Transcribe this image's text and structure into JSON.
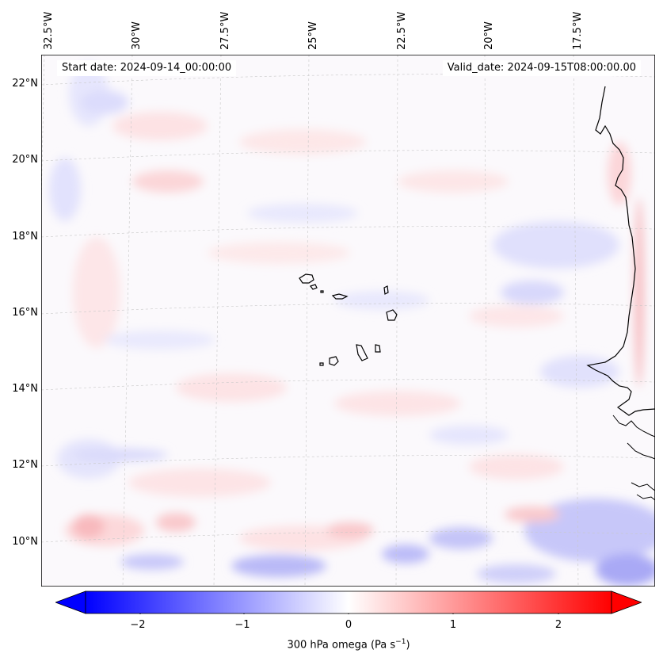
{
  "map": {
    "start_date": "Start date: 2024-09-14_00:00:00",
    "valid_date": "Valid_date: 2024-09-15T08:00:00.00",
    "lon_labels": [
      "32.5°W",
      "30°W",
      "27.5°W",
      "25°W",
      "22.5°W",
      "20°W",
      "17.5°W"
    ],
    "lat_labels": [
      "22°N",
      "20°N",
      "18°N",
      "16°N",
      "14°N",
      "12°N",
      "10°N"
    ],
    "field": "300 hPa omega",
    "colors": {
      "negative": "#0000ff",
      "zero": "#ffffff",
      "positive": "#ff0000",
      "coast": "#000000",
      "grid": "#b0b0b0"
    }
  },
  "colorbar": {
    "ticks": [
      "−2",
      "−1",
      "0",
      "1",
      "2"
    ],
    "range": [
      -2.6,
      2.6
    ],
    "label_main": "300 hPa omega (Pa s",
    "label_sup": "−1",
    "label_end": ")"
  }
}
